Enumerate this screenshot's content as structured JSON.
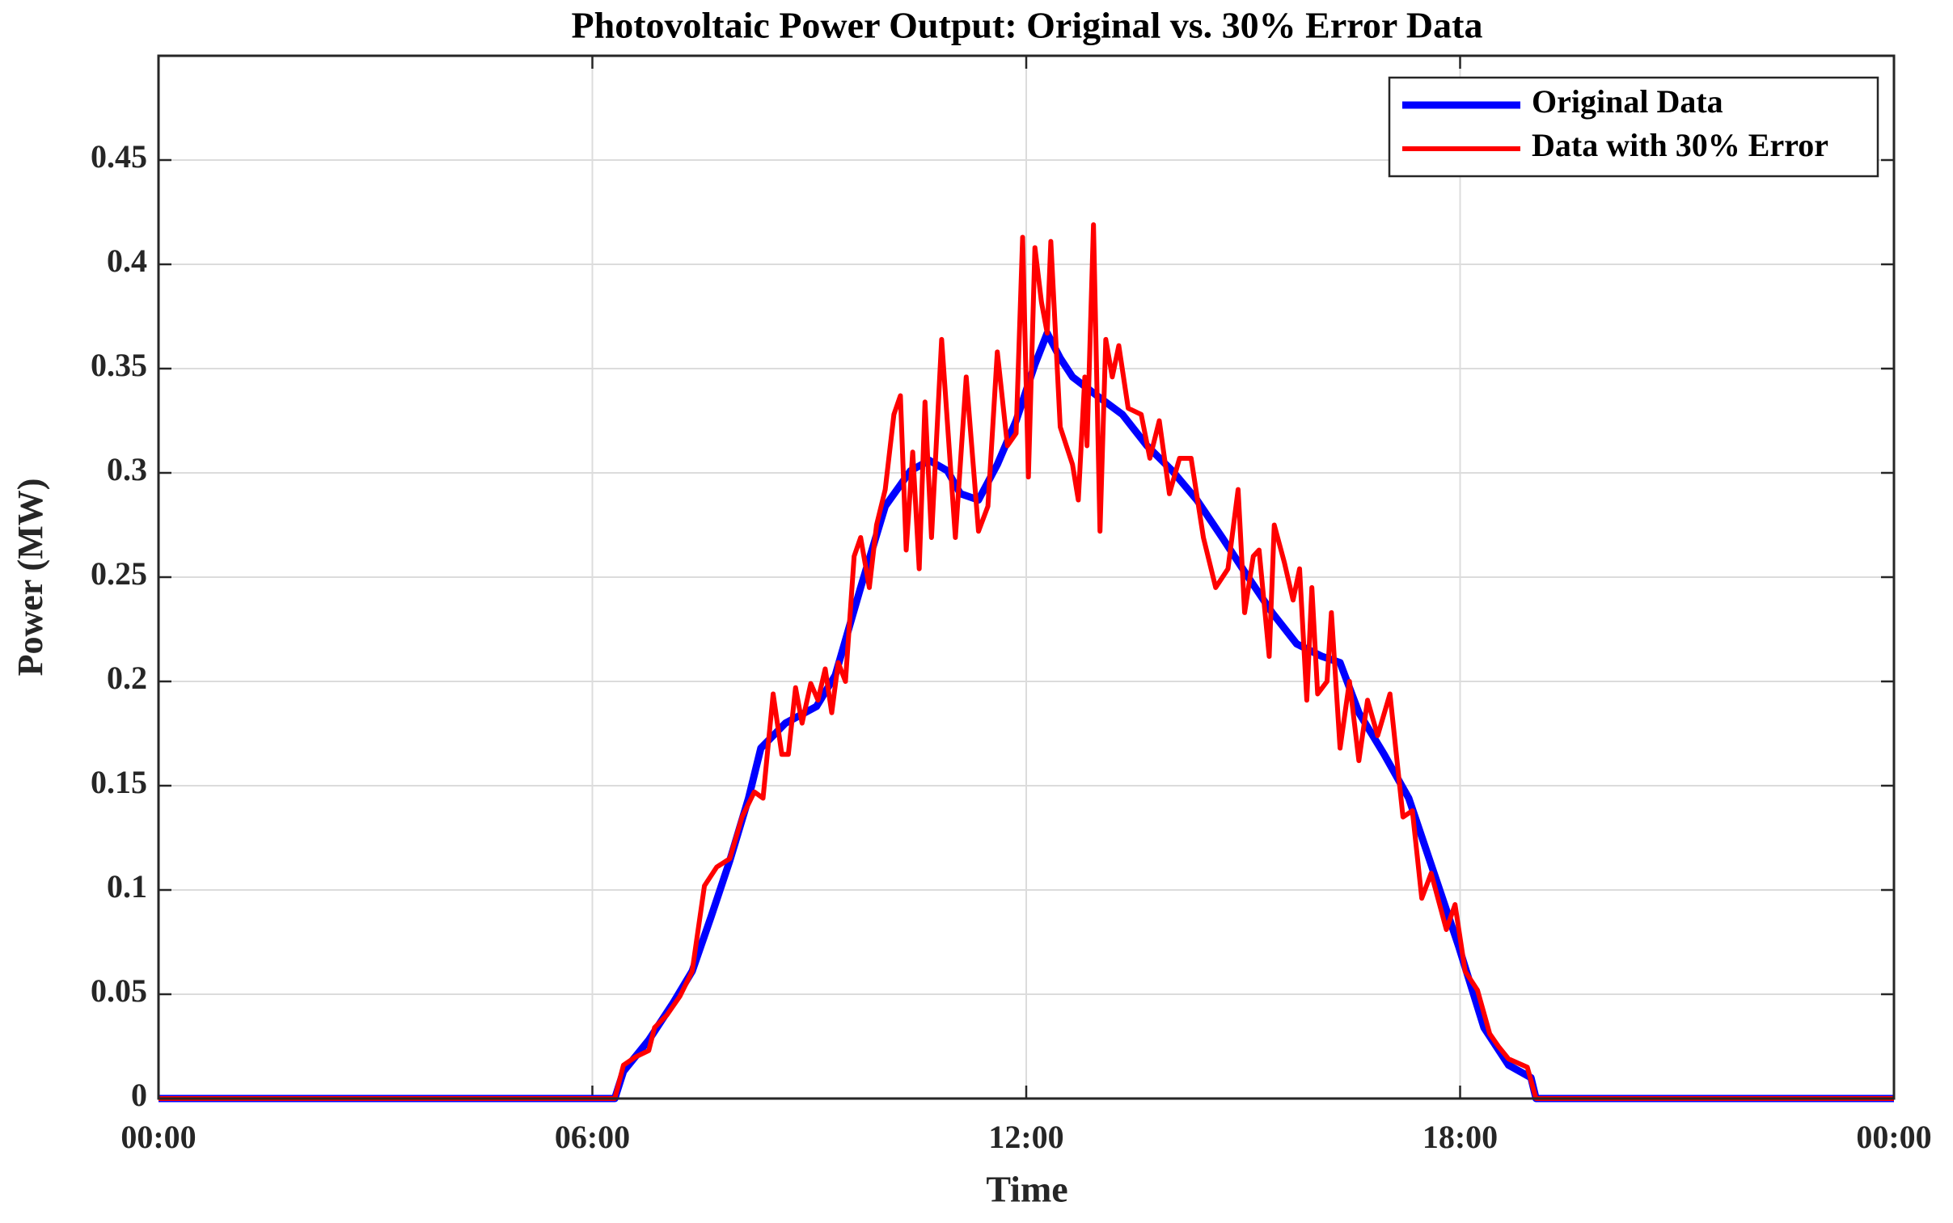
{
  "chart_data": {
    "type": "line",
    "title": "Photovoltaic Power Output: Original vs. 30% Error Data",
    "xlabel": "Time",
    "ylabel": "Power (MW)",
    "xlim": [
      0,
      24
    ],
    "xticks": [
      {
        "value": 0,
        "label": "00:00"
      },
      {
        "value": 6,
        "label": "06:00"
      },
      {
        "value": 12,
        "label": "12:00"
      },
      {
        "value": 18,
        "label": "18:00"
      },
      {
        "value": 24,
        "label": "00:00"
      }
    ],
    "ylim": [
      0,
      0.5
    ],
    "yticks": [
      0,
      0.05,
      0.1,
      0.15,
      0.2,
      0.25,
      0.3,
      0.35,
      0.4,
      0.45
    ],
    "grid": true,
    "legend": "northeast",
    "series": [
      {
        "name": "Original Data",
        "color": "#0000ff",
        "x": [
          0,
          6.31,
          6.43,
          6.78,
          7.12,
          7.38,
          7.64,
          7.9,
          8.16,
          8.33,
          8.67,
          9.1,
          9.36,
          9.71,
          10.05,
          10.4,
          10.66,
          10.91,
          11.09,
          11.34,
          11.6,
          11.86,
          12.12,
          12.29,
          12.47,
          12.64,
          12.98,
          13.33,
          13.67,
          14.02,
          14.36,
          14.71,
          15.05,
          15.4,
          15.74,
          16.09,
          16.34,
          16.6,
          16.95,
          17.29,
          17.64,
          17.98,
          18.33,
          18.67,
          18.98,
          19.05,
          24
        ],
        "values": [
          0,
          0,
          0.013,
          0.028,
          0.046,
          0.061,
          0.087,
          0.114,
          0.144,
          0.168,
          0.18,
          0.188,
          0.203,
          0.245,
          0.284,
          0.301,
          0.306,
          0.301,
          0.29,
          0.287,
          0.304,
          0.325,
          0.352,
          0.367,
          0.355,
          0.346,
          0.337,
          0.328,
          0.313,
          0.301,
          0.287,
          0.269,
          0.251,
          0.233,
          0.218,
          0.212,
          0.209,
          0.185,
          0.165,
          0.144,
          0.108,
          0.073,
          0.034,
          0.016,
          0.01,
          0,
          0
        ]
      },
      {
        "name": "Data with 30% Error",
        "color": "#ff0000",
        "x": [
          0,
          6.31,
          6.43,
          6.6,
          6.78,
          6.86,
          7.03,
          7.21,
          7.38,
          7.55,
          7.72,
          7.9,
          8.07,
          8.24,
          8.36,
          8.5,
          8.62,
          8.71,
          8.81,
          8.9,
          9.02,
          9.12,
          9.22,
          9.31,
          9.4,
          9.5,
          9.62,
          9.71,
          9.83,
          9.93,
          10.05,
          10.17,
          10.26,
          10.34,
          10.43,
          10.52,
          10.6,
          10.69,
          10.83,
          11.02,
          11.17,
          11.34,
          11.47,
          11.6,
          11.74,
          11.86,
          11.95,
          12.03,
          12.12,
          12.21,
          12.29,
          12.34,
          12.47,
          12.64,
          12.72,
          12.81,
          12.84,
          12.93,
          13.02,
          13.1,
          13.19,
          13.28,
          13.41,
          13.59,
          13.71,
          13.84,
          13.98,
          14.12,
          14.28,
          14.45,
          14.62,
          14.79,
          14.93,
          15.02,
          15.14,
          15.22,
          15.36,
          15.43,
          15.57,
          15.69,
          15.78,
          15.88,
          15.95,
          16.03,
          16.16,
          16.22,
          16.34,
          16.47,
          16.6,
          16.72,
          16.86,
          17.03,
          17.21,
          17.34,
          17.47,
          17.6,
          17.81,
          17.93,
          18.07,
          18.24,
          18.41,
          18.53,
          18.67,
          18.93,
          19.05,
          24
        ],
        "values": [
          0,
          0,
          0.016,
          0.02,
          0.023,
          0.034,
          0.04,
          0.049,
          0.061,
          0.102,
          0.111,
          0.115,
          0.135,
          0.147,
          0.144,
          0.194,
          0.165,
          0.165,
          0.197,
          0.18,
          0.199,
          0.191,
          0.206,
          0.185,
          0.209,
          0.2,
          0.26,
          0.269,
          0.245,
          0.275,
          0.292,
          0.328,
          0.337,
          0.263,
          0.31,
          0.254,
          0.334,
          0.269,
          0.364,
          0.269,
          0.346,
          0.272,
          0.284,
          0.358,
          0.313,
          0.319,
          0.413,
          0.298,
          0.408,
          0.382,
          0.367,
          0.411,
          0.322,
          0.304,
          0.287,
          0.346,
          0.313,
          0.419,
          0.272,
          0.364,
          0.346,
          0.361,
          0.331,
          0.328,
          0.307,
          0.325,
          0.29,
          0.307,
          0.307,
          0.269,
          0.245,
          0.254,
          0.292,
          0.233,
          0.26,
          0.263,
          0.212,
          0.275,
          0.257,
          0.239,
          0.254,
          0.191,
          0.245,
          0.194,
          0.2,
          0.233,
          0.168,
          0.2,
          0.162,
          0.191,
          0.174,
          0.194,
          0.135,
          0.138,
          0.096,
          0.108,
          0.081,
          0.093,
          0.061,
          0.052,
          0.031,
          0.025,
          0.019,
          0.015,
          0,
          0
        ]
      }
    ]
  }
}
